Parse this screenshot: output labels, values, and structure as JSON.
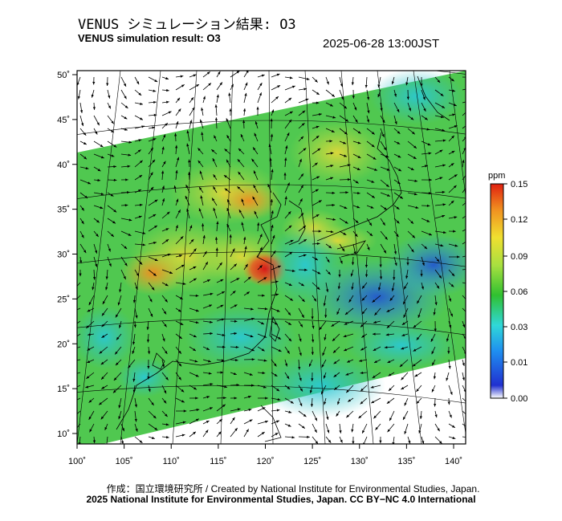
{
  "header": {
    "title_ja": "VENUS シミュレーション結果: O3",
    "title_en": "VENUS simulation result: O3",
    "timestamp": "2025-06-28 13:00JST"
  },
  "map": {
    "lat_ticks": [
      "50˚",
      "45˚",
      "40˚",
      "35˚",
      "30˚",
      "25˚",
      "20˚",
      "15˚",
      "10˚"
    ],
    "lat_values": [
      50,
      45,
      40,
      35,
      30,
      25,
      20,
      15,
      10
    ],
    "lon_ticks": [
      "100˚",
      "105˚",
      "110˚",
      "115˚",
      "120˚",
      "125˚",
      "130˚",
      "135˚",
      "140˚"
    ],
    "lon_values": [
      100,
      105,
      110,
      115,
      120,
      125,
      130,
      135,
      140
    ],
    "colorbar": {
      "unit": "ppm",
      "ticks": [
        "0.15",
        "0.12",
        "0.09",
        "0.06",
        "0.03",
        "0.01",
        "0.00"
      ],
      "values": [
        0.15,
        0.12,
        0.09,
        0.06,
        0.03,
        0.01,
        0.0
      ],
      "colors": [
        "#ffffff",
        "#2030d0",
        "#1f8ff0",
        "#30d8d8",
        "#30c030",
        "#a8e040",
        "#f0e030",
        "#f09020",
        "#e02010"
      ]
    }
  },
  "footer": {
    "credit_1": "作成：国立環境研究所 / Created by National Institute for Environmental Studies, Japan.",
    "credit_2": "2025 National Institute for Environmental Studies, Japan. CC BY−NC 4.0 International"
  }
}
